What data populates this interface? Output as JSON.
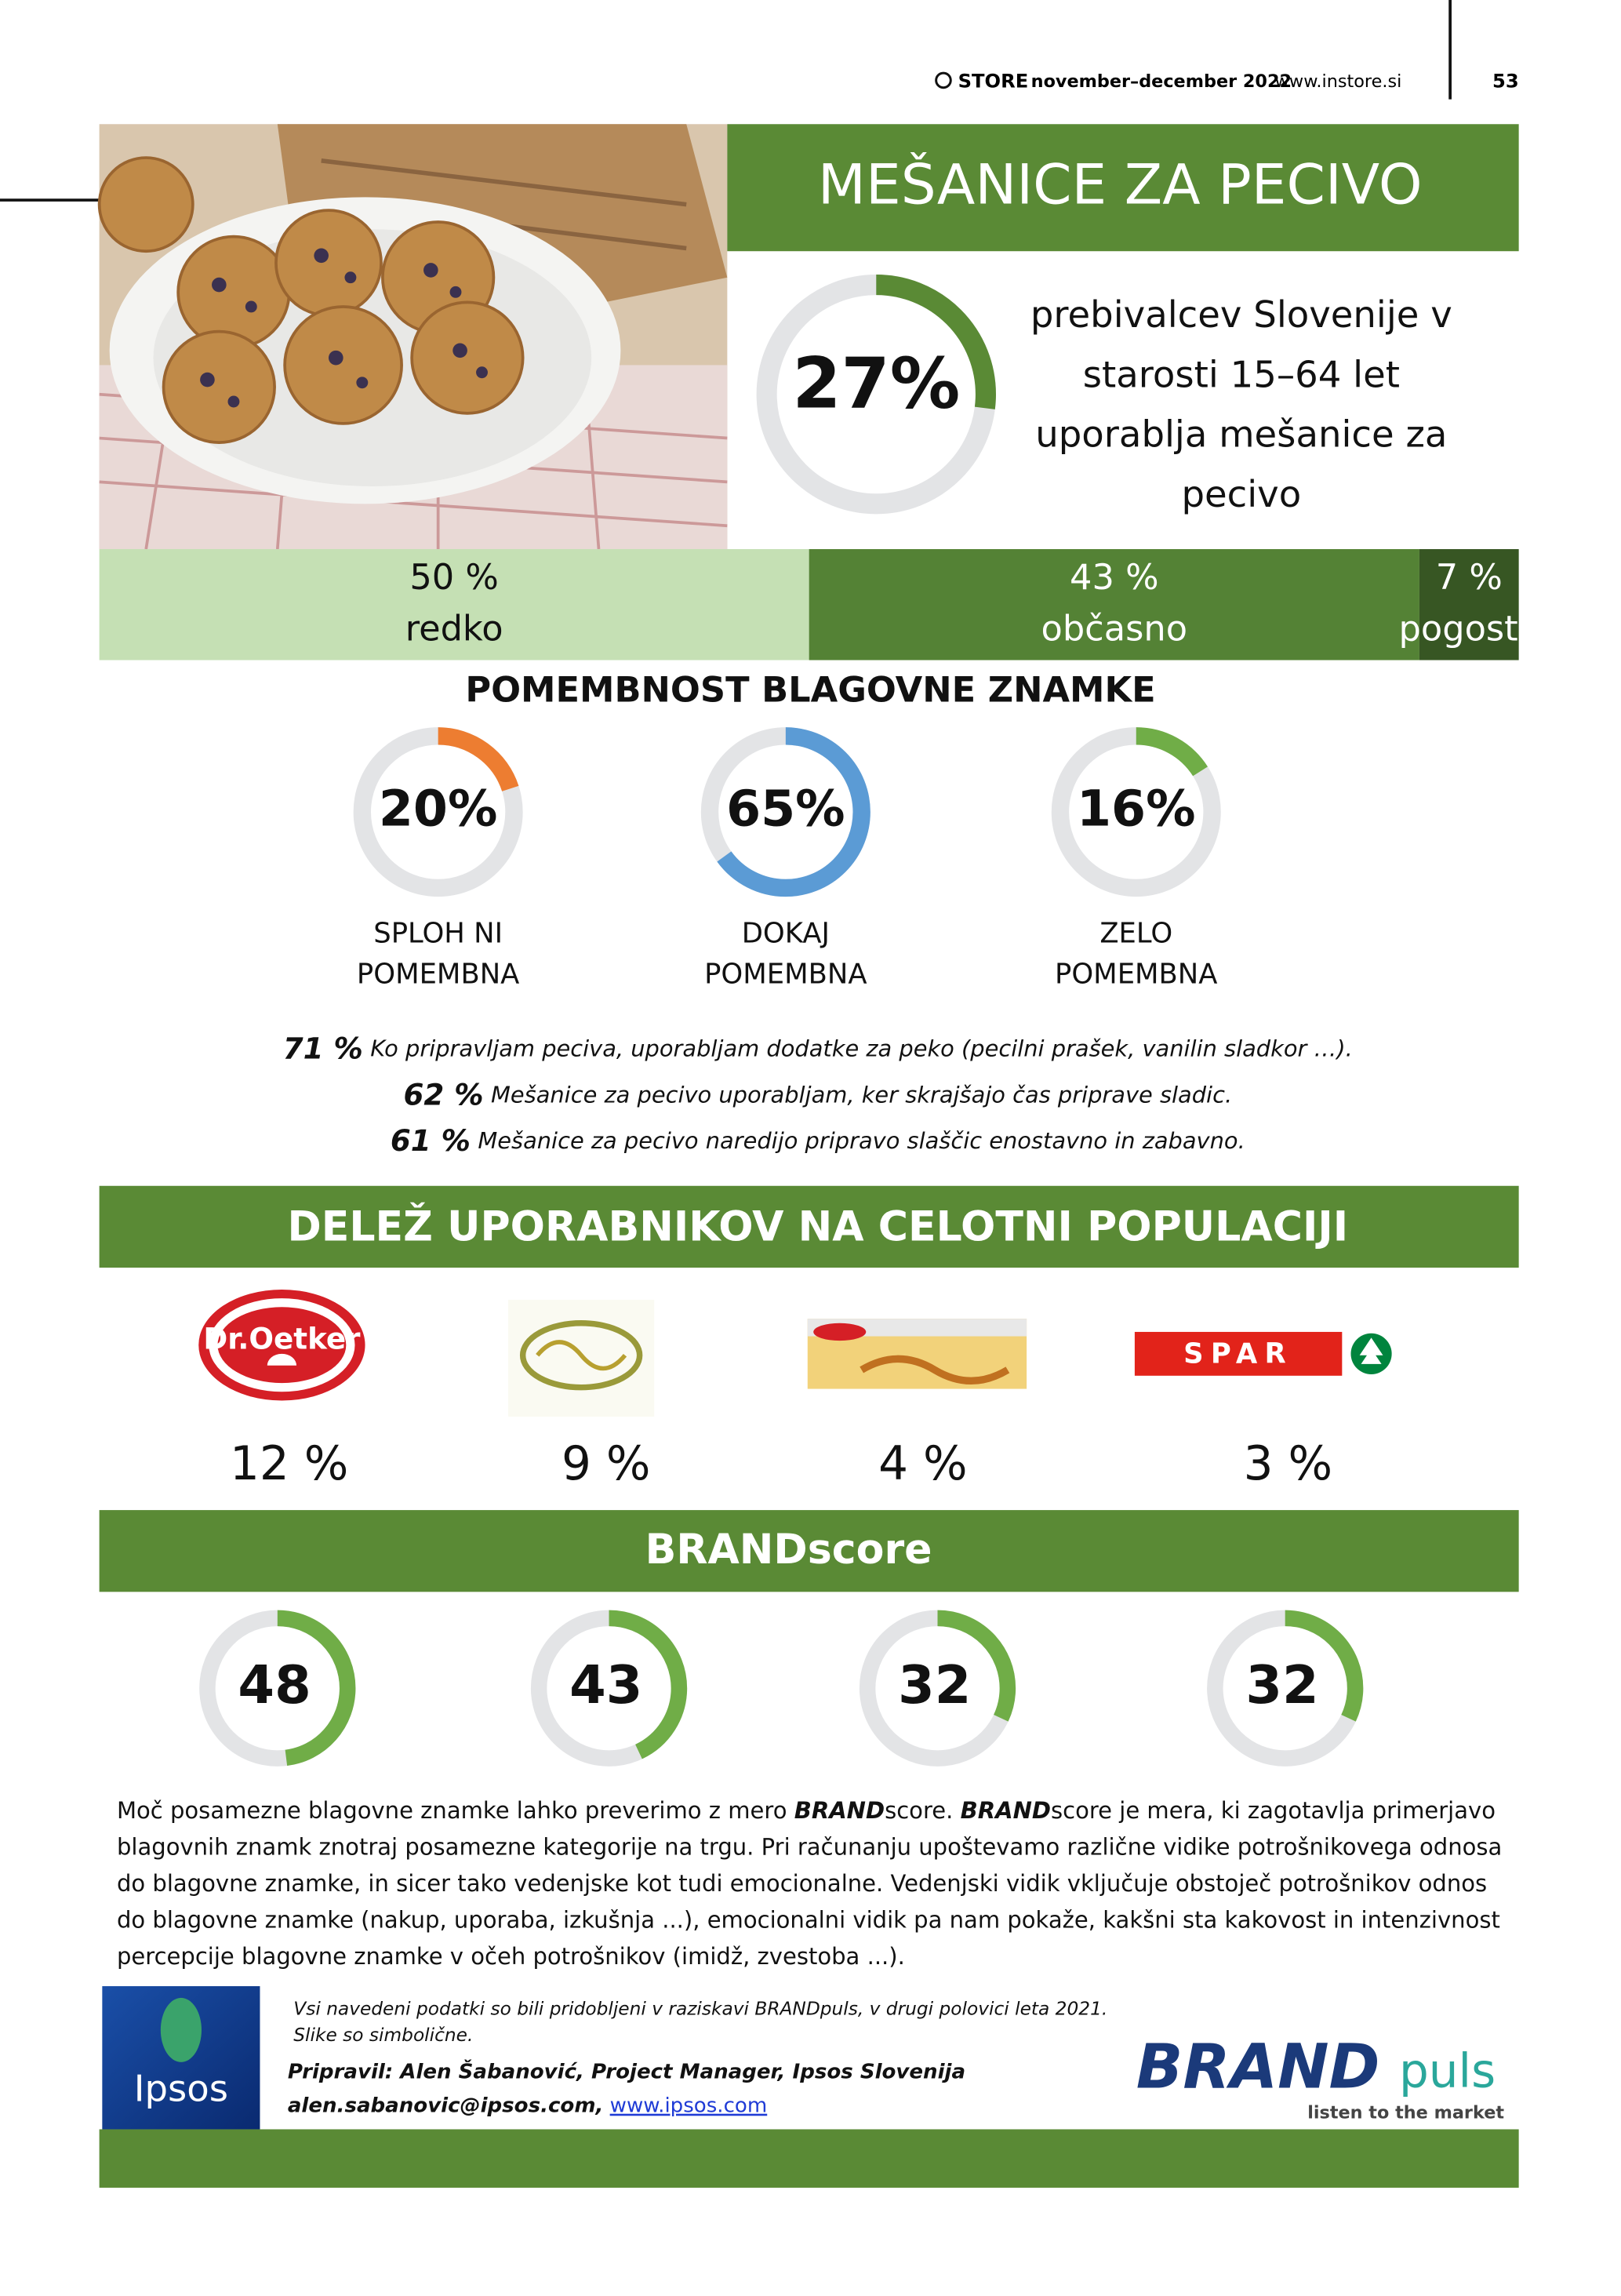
{
  "header": {
    "brand": "STORE",
    "issue": "november–december 2022",
    "url": "www.instore.si",
    "page": "53"
  },
  "title": "MEŠANICE ZA PECIVO",
  "usage": {
    "value": 27,
    "label": "27%",
    "text": "prebivalcev Slovenije v starosti 15–64 let uporablja mešanice za pecivo"
  },
  "frequency": [
    {
      "value": 50,
      "label": "50 %",
      "name": "redko",
      "color": "#c5e0b4"
    },
    {
      "value": 43,
      "label": "43 %",
      "name": "občasno",
      "color": "#548235"
    },
    {
      "value": 7,
      "label": "7 %",
      "name": "pogosto",
      "color": "#375623"
    }
  ],
  "importance": {
    "title": "POMEMBNOST BLAGOVNE ZNAMKE",
    "items": [
      {
        "value": 20,
        "label": "20%",
        "name": [
          "SPLOH NI",
          "POMEMBNA"
        ],
        "color": "#ed7d31"
      },
      {
        "value": 65,
        "label": "65%",
        "name": [
          "DOKAJ",
          "POMEMBNA"
        ],
        "color": "#5b9bd5"
      },
      {
        "value": 16,
        "label": "16%",
        "name": [
          "ZELO",
          "POMEMBNA"
        ],
        "color": "#70ad47"
      }
    ]
  },
  "statements": [
    {
      "value": 71,
      "label": "71 %",
      "text": "Ko pripravljam peciva, uporabljam dodatke za peko (pecilni prašek, vanilin sladkor …)."
    },
    {
      "value": 62,
      "label": "62 %",
      "text": "Mešanice za pecivo uporabljam, ker skrajšajo čas priprave sladic."
    },
    {
      "value": 61,
      "label": "61 %",
      "text": "Mešanice za pecivo naredijo pripravo slaščic enostavno in zabavno."
    }
  ],
  "share": {
    "title": "DELEŽ UPORABNIKOV NA CELOTNI POPULACIJI",
    "items": [
      {
        "brand": "Dr.Oetker",
        "value": 12,
        "label": "12 %"
      },
      {
        "value": 9,
        "label": "9 %"
      },
      {
        "value": 4,
        "label": "4 %"
      },
      {
        "brand": "SPAR",
        "value": 3,
        "label": "3 %"
      }
    ]
  },
  "brandscore": {
    "title": "BRANDscore",
    "values": [
      48,
      43,
      32,
      32
    ],
    "color": "#70ad47"
  },
  "description": [
    {
      "text": "Moč posamezne blagovne znamke lahko preverimo z mero "
    },
    {
      "text": "BRAND",
      "emphasis": true
    },
    {
      "text": "score. "
    },
    {
      "text": "BRAND",
      "emphasis": true
    },
    {
      "text": "score je mera, ki zagotavlja primerjavo blagovnih znamk znotraj posamezne kategorije na trgu. Pri računanju upoštevamo različne vidike potrošnikovega odnosa do blagovne znamke, in sicer tako vedenjske kot tudi emocionalne. Vedenjski vidik vključuje obstoječ potrošnikov odnos do blagovne znamke (nakup, uporaba, izkušnja ...), emocionalni vidik pa nam pokaže, kakšni sta kakovost in intenzivnost percepcije blagovne znamke v očeh potrošnikov (imidž, zvestoba ...)."
    }
  ],
  "footer": {
    "note": [
      "Vsi navedeni podatki so bili pridobljeni v raziskavi BRANDpuls, v drugi polovici leta 2021.",
      "Slike so simbolične."
    ],
    "prepared": "Pripravil: Alen Šabanović, Project Manager, Ipsos Slovenija",
    "email": "alen.sabanovic@ipsos.com,",
    "link": "www.ipsos.com",
    "ipsos": "Ipsos",
    "brandpuls": [
      "BRAND",
      "puls"
    ],
    "tagline": "listen to the market"
  }
}
